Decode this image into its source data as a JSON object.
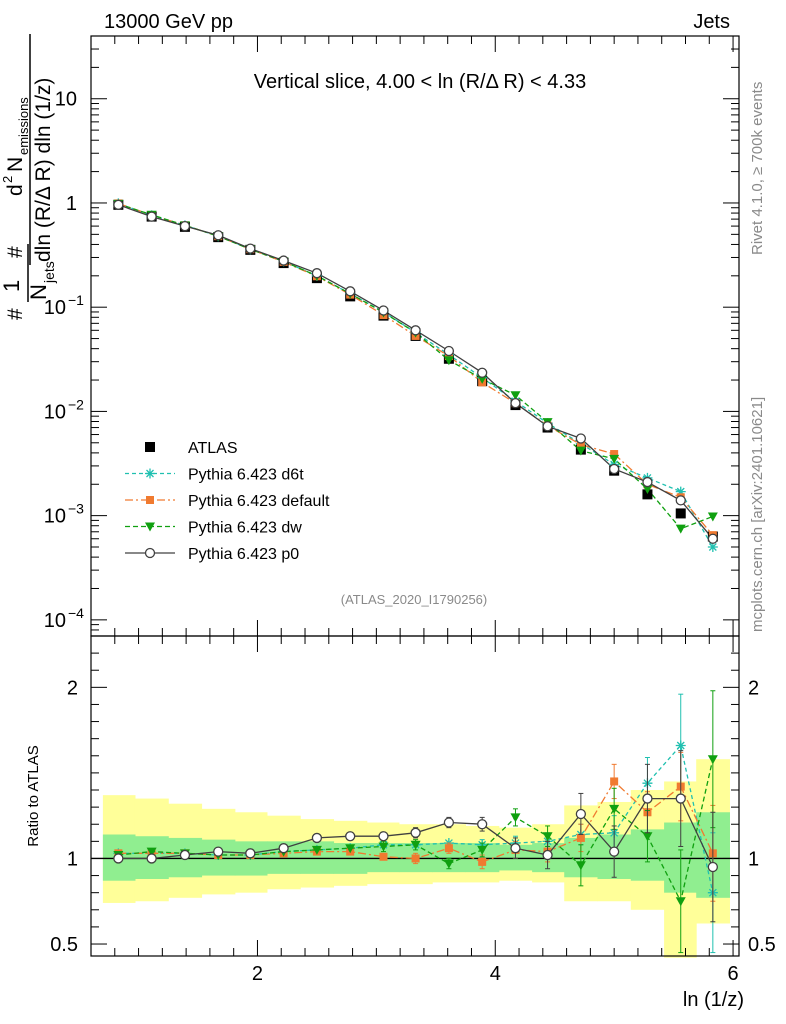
{
  "header": {
    "beam": "13000 GeV pp",
    "process": "Jets"
  },
  "side_labels": {
    "rivet": "Rivet 4.1.0, ≥ 700k events",
    "mcplots": "mcplots.cern.ch [arXiv:2401.10621]"
  },
  "chart_data": [
    {
      "type": "scatter",
      "title": "Vertical slice, 4.00 < ln (R/Δ R) < 4.33",
      "analysis_tag": "(ATLAS_2020_I1790256)",
      "xlabel": "ln (1/z)",
      "ylabel": "#frac{1}{N_{jets}} #frac{d² N_{emissions}}{dln (R/Δ R) dln (1/z)}",
      "ylabel_parts": {
        "one": "1",
        "njets_n": "N",
        "njets_sub": "jets",
        "num_d": "d",
        "num_sup": "2",
        "num_n": "N",
        "num_sub": "emissions",
        "den": "dln (R/Δ R) dln (1/z)",
        "hash": "#"
      },
      "yscale": "log",
      "xlim": [
        0.6,
        6.05
      ],
      "ylim": [
        7e-05,
        40
      ],
      "x_ticks": [
        2,
        4,
        6
      ],
      "y_ticks": [
        {
          "v": 0.0001,
          "m": "10",
          "e": "−4"
        },
        {
          "v": 0.001,
          "m": "10",
          "e": "−3"
        },
        {
          "v": 0.01,
          "m": "10",
          "e": "−2"
        },
        {
          "v": 0.1,
          "m": "10",
          "e": "−1"
        },
        {
          "v": 1,
          "m": "1",
          "e": ""
        },
        {
          "v": 10,
          "m": "10",
          "e": ""
        }
      ],
      "legend_position": "lower-left",
      "x": [
        0.83,
        1.11,
        1.39,
        1.67,
        1.94,
        2.22,
        2.5,
        2.78,
        3.06,
        3.33,
        3.61,
        3.89,
        4.17,
        4.44,
        4.72,
        5.0,
        5.28,
        5.56,
        5.83
      ],
      "series": [
        {
          "name": "ATLAS",
          "key": "data",
          "color": "#000000",
          "values": [
            0.96,
            0.74,
            0.59,
            0.47,
            0.355,
            0.265,
            0.19,
            0.127,
            0.083,
            0.053,
            0.032,
            0.0195,
            0.0115,
            0.007,
            0.0043,
            0.0027,
            0.0016,
            0.00105,
            0.00063
          ]
        },
        {
          "name": "Pythia 6.423 d6t",
          "key": "d6t",
          "color": "#20c0b0",
          "values": [
            0.99,
            0.76,
            0.61,
            0.48,
            0.36,
            0.275,
            0.2,
            0.135,
            0.09,
            0.057,
            0.035,
            0.021,
            0.0125,
            0.0077,
            0.0049,
            0.0031,
            0.0023,
            0.0017,
            0.0005
          ]
        },
        {
          "name": "Pythia 6.423 default",
          "key": "default",
          "color": "#f07a30",
          "values": [
            0.99,
            0.765,
            0.61,
            0.48,
            0.36,
            0.272,
            0.198,
            0.132,
            0.084,
            0.053,
            0.034,
            0.019,
            0.012,
            0.0073,
            0.0048,
            0.0039,
            0.002,
            0.0015,
            0.00065
          ]
        },
        {
          "name": "Pythia 6.423 dw",
          "key": "dw",
          "color": "#10a010",
          "values": [
            0.98,
            0.77,
            0.61,
            0.48,
            0.36,
            0.275,
            0.2,
            0.135,
            0.089,
            0.057,
            0.031,
            0.0205,
            0.0143,
            0.0079,
            0.0042,
            0.0035,
            0.0018,
            0.00075,
            0.00098
          ]
        },
        {
          "name": "Pythia 6.423 p0",
          "key": "p0",
          "color": "#404040",
          "values": [
            0.96,
            0.74,
            0.6,
            0.49,
            0.365,
            0.28,
            0.212,
            0.142,
            0.093,
            0.06,
            0.038,
            0.0235,
            0.012,
            0.0072,
            0.0055,
            0.0028,
            0.0021,
            0.0014,
            0.0006
          ]
        }
      ]
    },
    {
      "type": "scatter",
      "ylabel": "Ratio to ATLAS",
      "xlabel": "ln (1/z)",
      "ylim": [
        0.43,
        2.3
      ],
      "y_ticks": [
        0.5,
        1,
        2
      ],
      "x": [
        0.83,
        1.11,
        1.39,
        1.67,
        1.94,
        2.22,
        2.5,
        2.78,
        3.06,
        3.33,
        3.61,
        3.89,
        4.17,
        4.44,
        4.72,
        5.0,
        5.28,
        5.56,
        5.83
      ],
      "band_x_edges": [
        0.7,
        0.97,
        1.25,
        1.53,
        1.81,
        2.08,
        2.36,
        2.64,
        2.92,
        3.19,
        3.47,
        3.75,
        4.03,
        4.31,
        4.58,
        4.86,
        5.14,
        5.42,
        5.69,
        5.97
      ],
      "band_stat_lo": [
        0.87,
        0.88,
        0.89,
        0.9,
        0.9,
        0.91,
        0.91,
        0.91,
        0.92,
        0.92,
        0.92,
        0.92,
        0.93,
        0.92,
        0.89,
        0.88,
        0.87,
        0.8,
        0.77
      ],
      "band_stat_hi": [
        1.14,
        1.13,
        1.12,
        1.11,
        1.1,
        1.1,
        1.1,
        1.09,
        1.09,
        1.09,
        1.09,
        1.09,
        1.08,
        1.09,
        1.12,
        1.14,
        1.17,
        1.21,
        1.27
      ],
      "band_tot_lo": [
        0.74,
        0.75,
        0.77,
        0.79,
        0.8,
        0.82,
        0.83,
        0.84,
        0.85,
        0.85,
        0.86,
        0.86,
        0.87,
        0.86,
        0.75,
        0.75,
        0.7,
        0.42,
        0.62
      ],
      "band_tot_hi": [
        1.37,
        1.35,
        1.32,
        1.29,
        1.27,
        1.25,
        1.23,
        1.22,
        1.21,
        1.2,
        1.2,
        1.19,
        1.18,
        1.2,
        1.31,
        1.33,
        1.4,
        1.45,
        1.58
      ],
      "series": [
        {
          "name": "Pythia 6.423 d6t",
          "key": "d6t",
          "color": "#20c0b0",
          "values": [
            1.03,
            1.03,
            1.03,
            1.02,
            1.02,
            1.04,
            1.05,
            1.06,
            1.08,
            1.08,
            1.09,
            1.08,
            1.09,
            1.1,
            1.14,
            1.15,
            1.44,
            1.66,
            0.8
          ],
          "err": [
            0.01,
            0.01,
            0.01,
            0.01,
            0.01,
            0.01,
            0.01,
            0.02,
            0.02,
            0.02,
            0.02,
            0.03,
            0.04,
            0.05,
            0.06,
            0.1,
            0.15,
            0.3,
            0.35
          ]
        },
        {
          "name": "Pythia 6.423 default",
          "key": "default",
          "color": "#f07a30",
          "values": [
            1.03,
            1.03,
            1.03,
            1.02,
            1.02,
            1.03,
            1.04,
            1.04,
            1.01,
            1.0,
            1.06,
            0.98,
            1.05,
            1.04,
            1.12,
            1.45,
            1.27,
            1.42,
            1.03
          ],
          "err": [
            0.01,
            0.01,
            0.01,
            0.01,
            0.01,
            0.01,
            0.01,
            0.02,
            0.02,
            0.03,
            0.03,
            0.04,
            0.05,
            0.06,
            0.08,
            0.1,
            0.12,
            0.2,
            0.28
          ]
        },
        {
          "name": "Pythia 6.423 dw",
          "key": "dw",
          "color": "#10a010",
          "values": [
            1.02,
            1.04,
            1.03,
            1.02,
            1.02,
            1.04,
            1.05,
            1.06,
            1.07,
            1.08,
            0.97,
            1.05,
            1.24,
            1.13,
            0.96,
            1.29,
            1.13,
            0.75,
            1.58
          ],
          "err": [
            0.01,
            0.01,
            0.01,
            0.01,
            0.01,
            0.01,
            0.02,
            0.02,
            0.03,
            0.03,
            0.03,
            0.04,
            0.05,
            0.06,
            0.12,
            0.12,
            0.15,
            0.3,
            0.4
          ]
        },
        {
          "name": "Pythia 6.423 p0",
          "key": "p0",
          "color": "#404040",
          "values": [
            1.0,
            1.0,
            1.02,
            1.04,
            1.03,
            1.06,
            1.12,
            1.13,
            1.13,
            1.15,
            1.21,
            1.2,
            1.06,
            1.02,
            1.26,
            1.04,
            1.35,
            1.35,
            0.95
          ],
          "err": [
            0.01,
            0.01,
            0.01,
            0.01,
            0.01,
            0.01,
            0.02,
            0.02,
            0.02,
            0.03,
            0.03,
            0.04,
            0.06,
            0.08,
            0.12,
            0.15,
            0.2,
            0.28,
            0.32
          ]
        }
      ]
    }
  ]
}
